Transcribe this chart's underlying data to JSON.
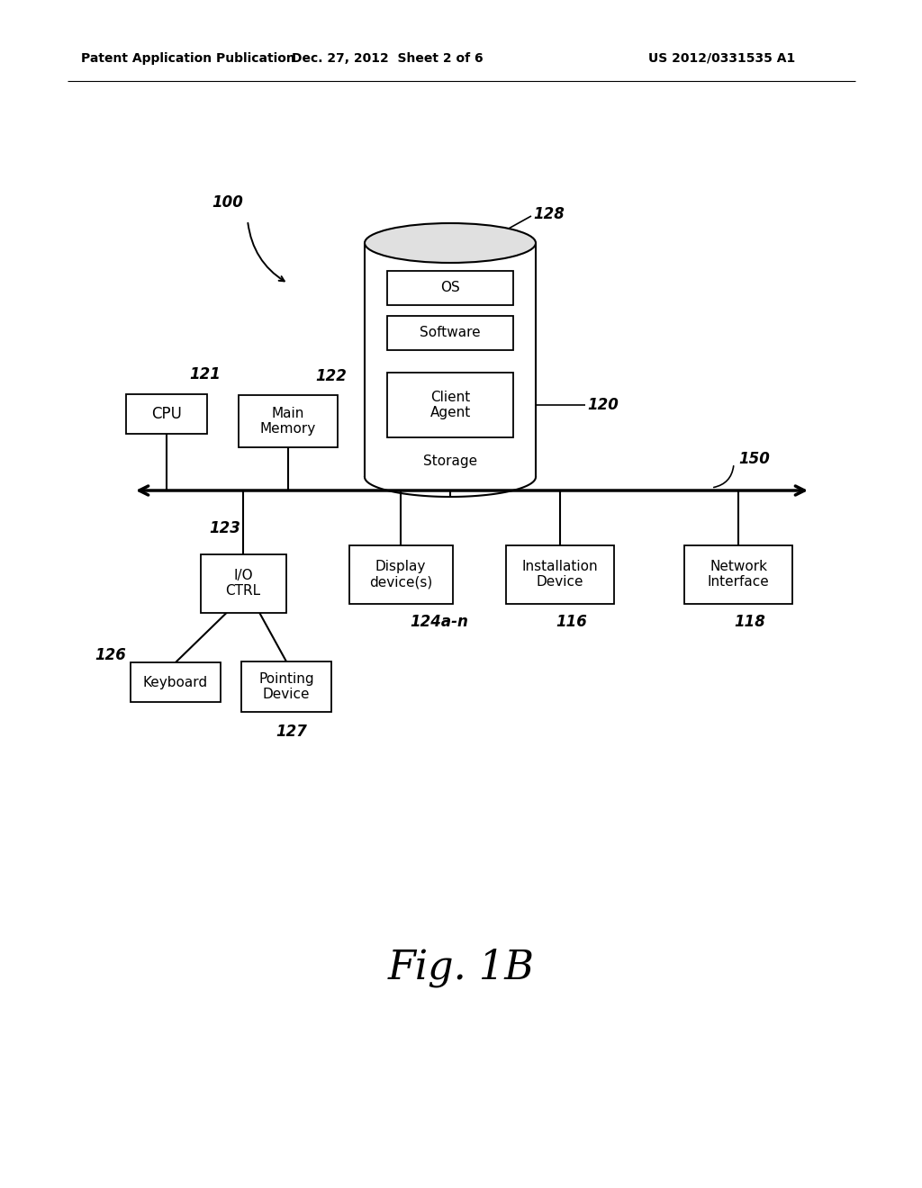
{
  "bg_color": "#ffffff",
  "header_left": "Patent Application Publication",
  "header_mid": "Dec. 27, 2012  Sheet 2 of 6",
  "header_right": "US 2012/0331535 A1",
  "fig_label": "Fig. 1B",
  "label_100": "100",
  "label_128": "128",
  "label_150": "150",
  "label_120": "120",
  "label_121": "121",
  "label_122": "122",
  "label_123": "123",
  "label_124": "124a-n",
  "label_116": "116",
  "label_118": "118",
  "label_126": "126",
  "label_127": "127",
  "box_cpu": "CPU",
  "box_main_memory": "Main\nMemory",
  "box_os": "OS",
  "box_software": "Software",
  "box_client_agent": "Client\nAgent",
  "box_storage": "Storage",
  "box_io": "I/O\nCTRL",
  "box_display": "Display\ndevice(s)",
  "box_installation": "Installation\nDevice",
  "box_network": "Network\nInterface",
  "box_keyboard": "Keyboard",
  "box_pointing": "Pointing\nDevice"
}
